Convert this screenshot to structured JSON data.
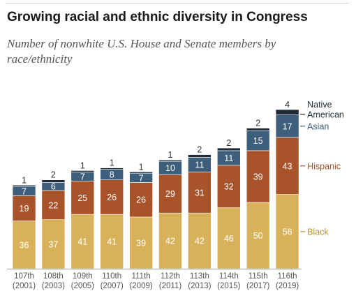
{
  "header": {
    "title": "Growing racial and ethnic diversity in Congress",
    "subtitle": "Number of nonwhite U.S. House and Senate members by race/ethnicity"
  },
  "chart_data": {
    "type": "bar",
    "stacked": true,
    "categories": [
      "107th",
      "108th",
      "109th",
      "110th",
      "111th",
      "112th",
      "113th",
      "114th",
      "115th",
      "116th"
    ],
    "category_years": [
      "(2001)",
      "(2003)",
      "(2005)",
      "(2007)",
      "(2009)",
      "(2011)",
      "(2013)",
      "(2015)",
      "(2017)",
      "(2019)"
    ],
    "series": [
      {
        "name": "Black",
        "color": "#d8b25a",
        "label_color": "#ffffff",
        "values": [
          36,
          37,
          41,
          41,
          39,
          42,
          42,
          46,
          50,
          56
        ]
      },
      {
        "name": "Hispanic",
        "color": "#a9532b",
        "label_color": "#ffffff",
        "values": [
          19,
          22,
          25,
          26,
          26,
          29,
          31,
          32,
          39,
          43
        ]
      },
      {
        "name": "Asian",
        "color": "#3e5f7c",
        "label_color": "#ffffff",
        "values": [
          7,
          6,
          7,
          8,
          7,
          10,
          11,
          11,
          15,
          17
        ]
      },
      {
        "name": "Native American",
        "color": "#1f2a36",
        "label_color": "#333333",
        "values": [
          1,
          2,
          1,
          1,
          1,
          1,
          2,
          2,
          2,
          4
        ]
      }
    ],
    "legend_position": "right of last bar",
    "legend_colors": {
      "Black": "#b8922e",
      "Hispanic": "#a9532b",
      "Asian": "#3e5f7c",
      "Native American": "#1f2a36"
    },
    "grid": false,
    "ylim": [
      0,
      120
    ]
  }
}
